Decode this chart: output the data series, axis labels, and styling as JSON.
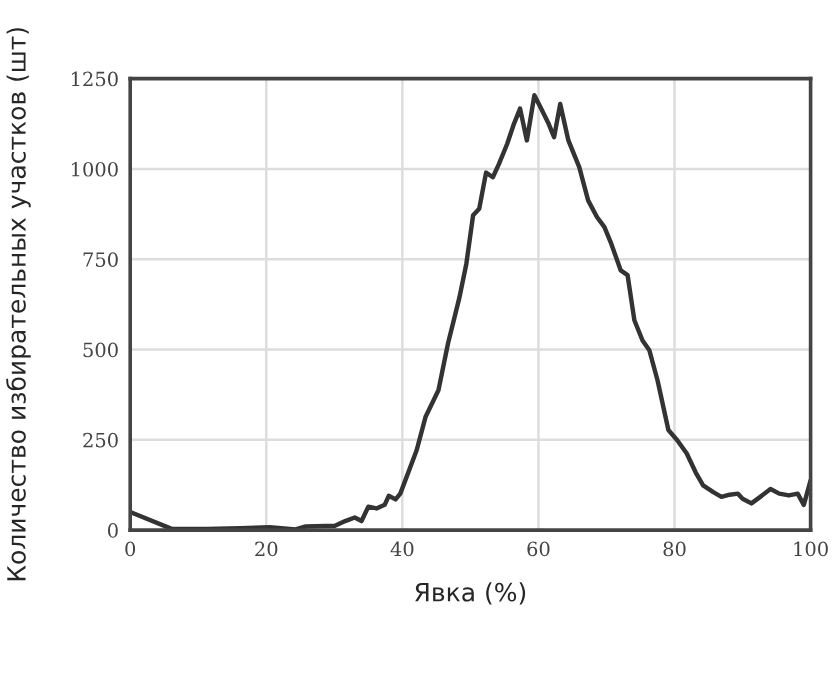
{
  "chart_data": {
    "type": "line",
    "xlabel": "Явка (%)",
    "ylabel": "Количество избирательных участков (шт)",
    "x": [
      0,
      6.0,
      11.3,
      16.1,
      20.5,
      24.3,
      25.8,
      30.1,
      31.6,
      33.0,
      34.0,
      35.0,
      36.2,
      37.4,
      38.0,
      39.0,
      39.7,
      42.1,
      43.4,
      45.3,
      46.7,
      48.4,
      49.4,
      50.4,
      51.3,
      52.3,
      53.3,
      54.2,
      55.4,
      56.4,
      57.3,
      58.3,
      59.4,
      60.3,
      61.5,
      62.3,
      63.2,
      64.4,
      66.0,
      67.3,
      68.6,
      69.7,
      70.7,
      72.1,
      73.1,
      74.1,
      75.3,
      76.3,
      77.5,
      79.1,
      80.4,
      81.8,
      83.1,
      84.2,
      85.7,
      86.9,
      88.1,
      89.3,
      90.0,
      91.3,
      92.6,
      94.1,
      95.4,
      96.8,
      98.1,
      99.0,
      100
    ],
    "series": [
      {
        "color": "#333333",
        "values": [
          50,
          4,
          3,
          5,
          8,
          2,
          10,
          12,
          25,
          35,
          25,
          65,
          60,
          70,
          95,
          85,
          101,
          221,
          313,
          387,
          516,
          645,
          737,
          872,
          890,
          990,
          977,
          1014,
          1069,
          1125,
          1167,
          1079,
          1204,
          1171,
          1125,
          1088,
          1180,
          1079,
          1005,
          913,
          867,
          839,
          793,
          719,
          706,
          581,
          525,
          498,
          415,
          277,
          249,
          212,
          160,
          124,
          105,
          92,
          98,
          101,
          87,
          74,
          92,
          114,
          101,
          96,
          101,
          70,
          138
        ]
      }
    ],
    "xlim": [
      0,
      100
    ],
    "ylim": [
      0,
      1250
    ],
    "xticks": [
      0,
      20,
      40,
      60,
      80,
      100
    ],
    "yticks": [
      0,
      250,
      500,
      750,
      1000,
      1250
    ],
    "grid": true,
    "marker": "none",
    "line_style": "solid"
  }
}
